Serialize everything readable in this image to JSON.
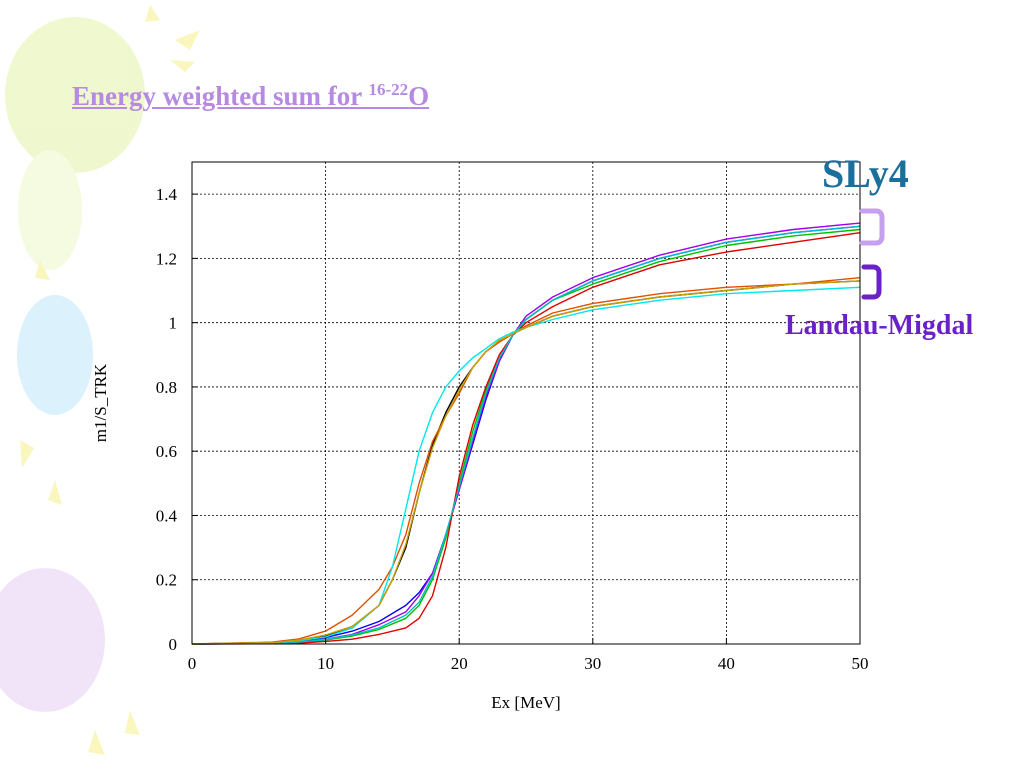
{
  "slide": {
    "title_main": "Energy weighted sum for ",
    "title_sup": "16-22",
    "title_end": "O",
    "title_color": "#b58ae0"
  },
  "annotations": {
    "sly4": {
      "label": "SLy4",
      "color": "#1c6f9a",
      "bracket_color": "#c4a0ee"
    },
    "landau_migdal": {
      "label": "Landau-Migdal",
      "color": "#6a22c8",
      "bracket_color": "#6a22c8"
    }
  },
  "chart_data": {
    "type": "line",
    "xlabel": "Ex [MeV]",
    "ylabel": "m1/S_TRK",
    "xlim": [
      0,
      50
    ],
    "ylim": [
      0,
      1.5
    ],
    "xticks": [
      0,
      10,
      20,
      30,
      40,
      50
    ],
    "yticks": [
      0,
      0.2,
      0.4,
      0.6,
      0.8,
      1,
      1.2,
      1.4
    ],
    "ytick_labels": [
      "0",
      "0.2",
      "0.4",
      "0.6",
      "0.8",
      "1",
      "1.2",
      "1.4"
    ],
    "grid": true,
    "series": [
      {
        "group": "SLy4",
        "color": "#0000ff",
        "x": [
          0,
          6,
          8,
          10,
          12,
          14,
          16,
          17,
          18,
          19,
          20,
          21,
          22,
          23,
          24,
          25,
          27,
          30,
          35,
          40,
          45,
          50
        ],
        "y": [
          0,
          0.003,
          0.008,
          0.02,
          0.04,
          0.07,
          0.12,
          0.16,
          0.22,
          0.34,
          0.48,
          0.62,
          0.76,
          0.88,
          0.96,
          1.01,
          1.07,
          1.13,
          1.2,
          1.25,
          1.28,
          1.3
        ]
      },
      {
        "group": "SLy4",
        "color": "#a000f0",
        "x": [
          0,
          6,
          8,
          10,
          12,
          14,
          16,
          17,
          18,
          19,
          20,
          21,
          22,
          23,
          24,
          25,
          27,
          30,
          35,
          40,
          45,
          50
        ],
        "y": [
          0,
          0.002,
          0.006,
          0.015,
          0.03,
          0.06,
          0.1,
          0.15,
          0.22,
          0.34,
          0.48,
          0.63,
          0.77,
          0.88,
          0.96,
          1.02,
          1.08,
          1.14,
          1.21,
          1.26,
          1.29,
          1.31
        ]
      },
      {
        "group": "SLy4",
        "color": "#00c000",
        "x": [
          0,
          6,
          8,
          10,
          12,
          14,
          16,
          17,
          18,
          19,
          20,
          21,
          22,
          23,
          24,
          25,
          27,
          30,
          35,
          40,
          45,
          50
        ],
        "y": [
          0,
          0.002,
          0.005,
          0.012,
          0.025,
          0.045,
          0.08,
          0.12,
          0.2,
          0.33,
          0.5,
          0.66,
          0.79,
          0.89,
          0.96,
          1.01,
          1.07,
          1.12,
          1.19,
          1.24,
          1.27,
          1.29
        ]
      },
      {
        "group": "SLy4",
        "color": "#e00000",
        "x": [
          0,
          6,
          8,
          10,
          12,
          14,
          16,
          17,
          18,
          19,
          20,
          21,
          22,
          23,
          24,
          25,
          27,
          30,
          35,
          40,
          45,
          50
        ],
        "y": [
          0,
          0.001,
          0.003,
          0.008,
          0.015,
          0.03,
          0.05,
          0.08,
          0.15,
          0.3,
          0.52,
          0.68,
          0.8,
          0.9,
          0.96,
          1.0,
          1.05,
          1.11,
          1.18,
          1.22,
          1.25,
          1.28
        ]
      },
      {
        "group": "SLy4",
        "color": "#00c0c0",
        "x": [
          0,
          6,
          8,
          10,
          12,
          14,
          16,
          17,
          18,
          19,
          20,
          21,
          22,
          23,
          24,
          25,
          27,
          30,
          35,
          40,
          45,
          50
        ],
        "y": [
          0,
          0.002,
          0.006,
          0.014,
          0.028,
          0.05,
          0.09,
          0.13,
          0.21,
          0.34,
          0.49,
          0.64,
          0.78,
          0.89,
          0.96,
          1.01,
          1.07,
          1.13,
          1.2,
          1.25,
          1.28,
          1.3
        ]
      },
      {
        "group": "Landau-Migdal",
        "color": "#000000",
        "x": [
          0,
          6,
          8,
          10,
          12,
          14,
          15,
          16,
          17,
          18,
          19,
          20,
          21,
          22,
          23,
          24,
          25,
          27,
          30,
          35,
          40,
          45,
          50
        ],
        "y": [
          0,
          0.004,
          0.01,
          0.025,
          0.05,
          0.12,
          0.2,
          0.3,
          0.47,
          0.62,
          0.72,
          0.8,
          0.86,
          0.91,
          0.94,
          0.965,
          0.985,
          1.02,
          1.05,
          1.08,
          1.1,
          1.12,
          1.13
        ]
      },
      {
        "group": "Landau-Migdal",
        "color": "#e05000",
        "x": [
          0,
          6,
          8,
          10,
          12,
          14,
          15,
          16,
          17,
          18,
          19,
          20,
          21,
          22,
          23,
          24,
          25,
          27,
          30,
          35,
          40,
          45,
          50
        ],
        "y": [
          0,
          0.006,
          0.016,
          0.04,
          0.09,
          0.17,
          0.24,
          0.34,
          0.5,
          0.63,
          0.71,
          0.78,
          0.86,
          0.91,
          0.94,
          0.965,
          0.99,
          1.03,
          1.06,
          1.09,
          1.11,
          1.12,
          1.14
        ]
      },
      {
        "group": "Landau-Migdal",
        "color": "#00e8e8",
        "x": [
          0,
          6,
          8,
          10,
          12,
          14,
          15,
          16,
          17,
          18,
          19,
          20,
          21,
          22,
          23,
          24,
          25,
          27,
          30,
          35,
          40,
          45,
          50
        ],
        "y": [
          0,
          0.004,
          0.01,
          0.022,
          0.05,
          0.12,
          0.24,
          0.42,
          0.6,
          0.72,
          0.8,
          0.85,
          0.89,
          0.92,
          0.95,
          0.97,
          0.985,
          1.01,
          1.04,
          1.07,
          1.09,
          1.1,
          1.11
        ]
      },
      {
        "group": "Landau-Migdal",
        "color": "#c8a000",
        "x": [
          0,
          6,
          8,
          10,
          12,
          14,
          15,
          16,
          17,
          18,
          19,
          20,
          21,
          22,
          23,
          24,
          25,
          27,
          30,
          35,
          40,
          45,
          50
        ],
        "y": [
          0,
          0.004,
          0.012,
          0.028,
          0.055,
          0.12,
          0.2,
          0.31,
          0.47,
          0.61,
          0.71,
          0.79,
          0.86,
          0.91,
          0.945,
          0.965,
          0.985,
          1.02,
          1.05,
          1.08,
          1.1,
          1.12,
          1.13
        ]
      }
    ]
  }
}
